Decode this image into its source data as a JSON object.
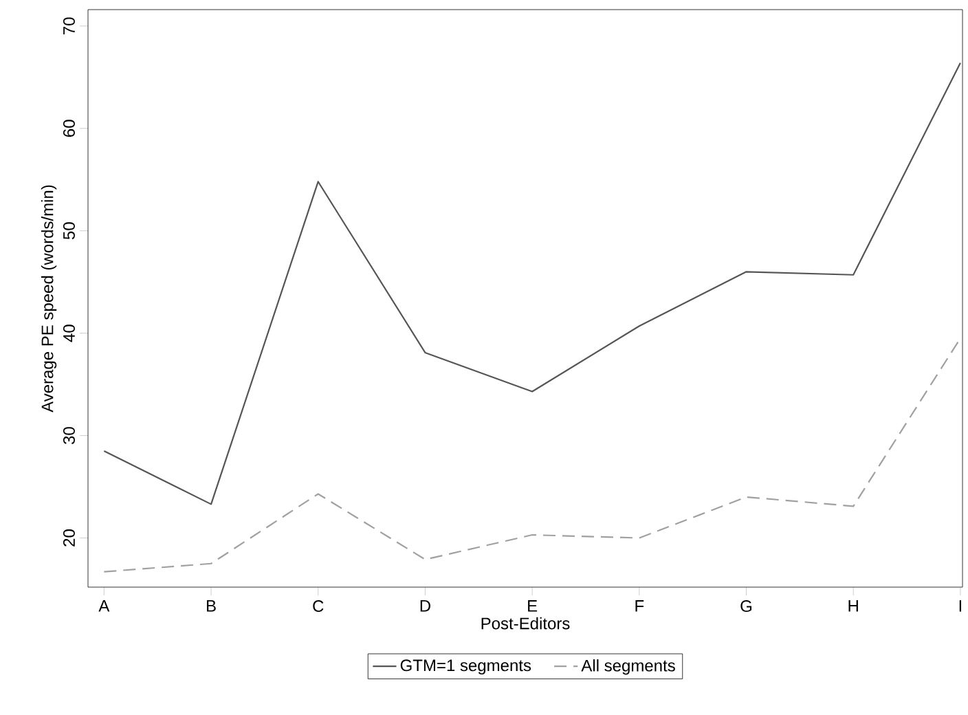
{
  "chart_data": {
    "type": "line",
    "xlabel": "Post-Editors",
    "ylabel": "Average PE speed (words/min)",
    "categories": [
      "A",
      "B",
      "C",
      "D",
      "E",
      "F",
      "G",
      "H",
      "I"
    ],
    "series": [
      {
        "name": "GTM=1 segments",
        "color": "#555555",
        "line_style": "solid",
        "values": [
          28.5,
          23.3,
          54.8,
          38.1,
          34.3,
          40.7,
          46.0,
          45.7,
          66.4
        ]
      },
      {
        "name": "All segments",
        "color": "#a0a0a0",
        "line_style": "dashed",
        "values": [
          16.7,
          17.5,
          24.3,
          17.9,
          20.3,
          20.0,
          24.0,
          23.1,
          39.5
        ]
      }
    ],
    "ylim": [
      15.2,
      71.6
    ],
    "yticks": [
      20,
      30,
      40,
      50,
      60,
      70
    ],
    "grid": false,
    "legend": "bottom",
    "marker": "none"
  }
}
